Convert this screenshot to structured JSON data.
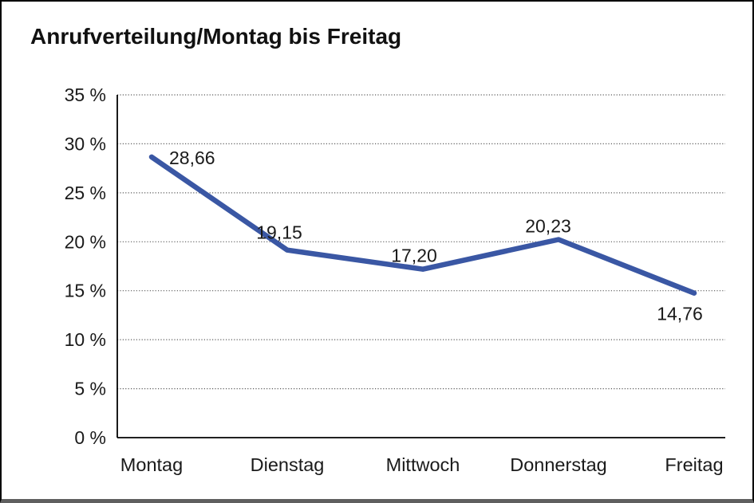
{
  "window": {
    "title": "Anrufverteilung/Montag bis Freitag"
  },
  "chart_data": {
    "type": "line",
    "title": "Anrufverteilung/Montag bis Freitag",
    "categories": [
      "Montag",
      "Dienstag",
      "Mittwoch",
      "Donnerstag",
      "Freitag"
    ],
    "series": [
      {
        "name": "Anrufverteilung",
        "values": [
          28.66,
          19.15,
          17.2,
          20.23,
          14.76
        ]
      }
    ],
    "value_labels": [
      "28,66",
      "19,15",
      "17,20",
      "20,23",
      "14,76"
    ],
    "y_ticks": [
      "0 %",
      "5 %",
      "10 %",
      "15 %",
      "20 %",
      "25 %",
      "30 %",
      "35 %"
    ],
    "ylim": [
      0,
      35
    ],
    "y_step": 5,
    "xlabel": "",
    "ylabel": "",
    "legend": "none",
    "grid": "horizontal-dotted",
    "line_color": "#3A57A4",
    "grid_color": "#5c5c5c",
    "axis_color": "#000000",
    "label_color": "#1a1a1a"
  }
}
